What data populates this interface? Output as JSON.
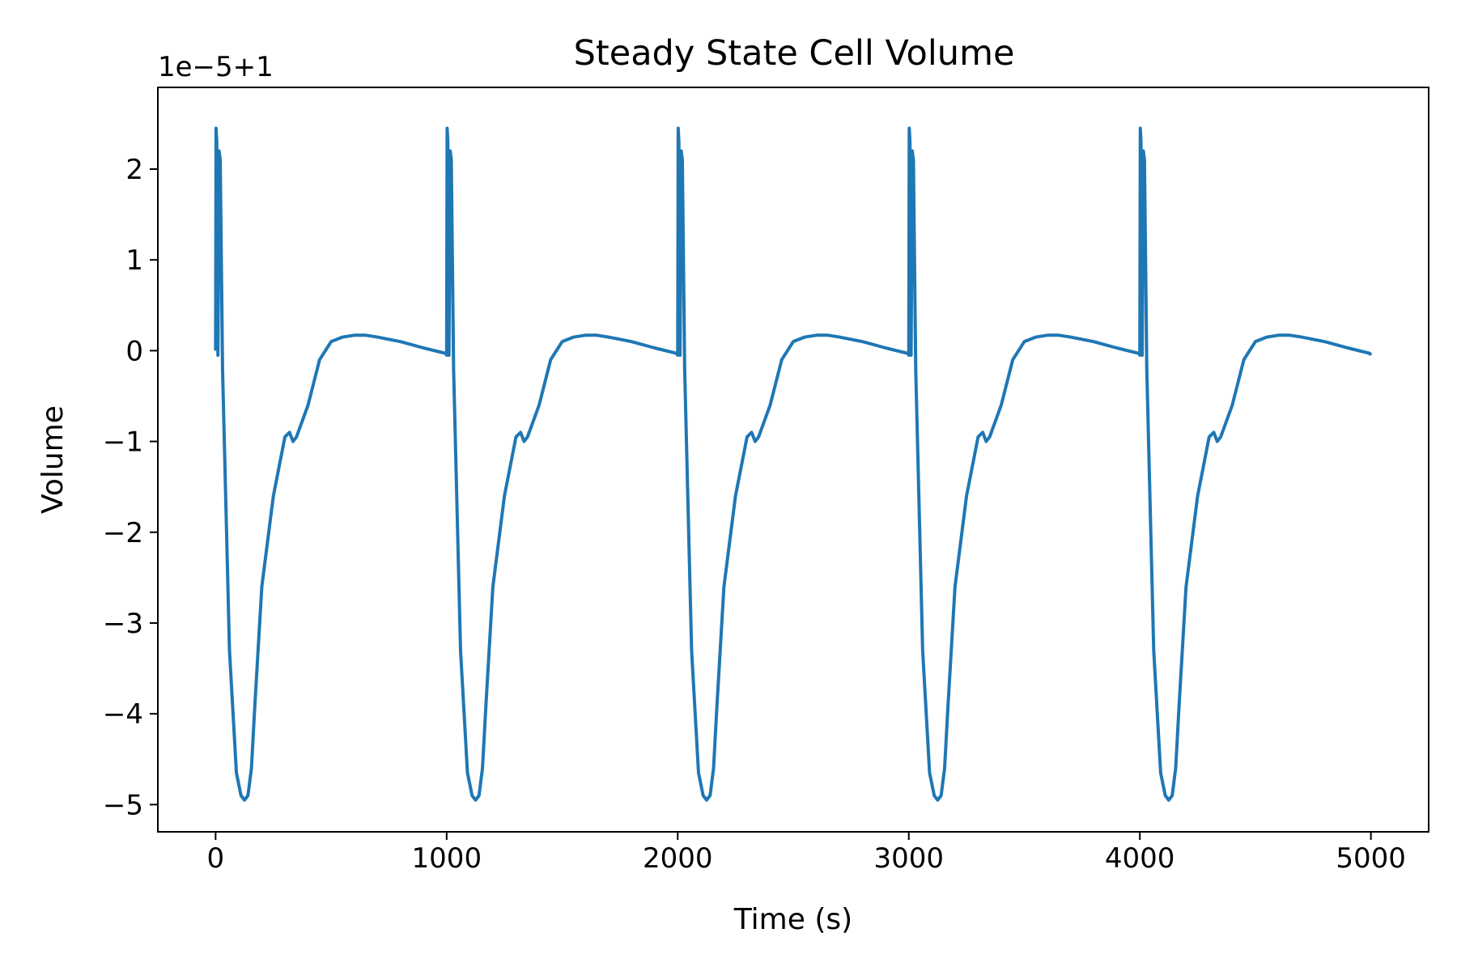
{
  "chart_data": {
    "type": "line",
    "title": "Steady State Cell Volume",
    "xlabel": "Time (s)",
    "ylabel": "Volume",
    "offset_label": "1e−5+1",
    "xlim": [
      -250,
      5250
    ],
    "ylim": [
      -5.3,
      2.9
    ],
    "x_ticks": [
      0,
      1000,
      2000,
      3000,
      4000,
      5000
    ],
    "x_tick_labels": [
      "0",
      "1000",
      "2000",
      "3000",
      "4000",
      "5000"
    ],
    "y_ticks": [
      -5,
      -4,
      -3,
      -2,
      -1,
      0,
      1,
      2
    ],
    "y_tick_labels": [
      "−5",
      "−4",
      "−3",
      "−2",
      "−1",
      "0",
      "1",
      "2"
    ],
    "grid": false,
    "series": [
      {
        "color": "#1f77b4",
        "cycle_period": 1000,
        "cycles": 5,
        "cycle_x": [
          0,
          2,
          5,
          10,
          15,
          20,
          30,
          60,
          90,
          110,
          125,
          140,
          155,
          170,
          200,
          250,
          300,
          320,
          335,
          350,
          400,
          450,
          500,
          550,
          600,
          650,
          700,
          800,
          900,
          995,
          1000
        ],
        "cycle_y": [
          0.0,
          2.45,
          2.3,
          -0.05,
          2.2,
          2.1,
          -0.2,
          -3.3,
          -4.65,
          -4.9,
          -4.95,
          -4.9,
          -4.6,
          -3.9,
          -2.6,
          -1.6,
          -0.95,
          -0.9,
          -1.0,
          -0.95,
          -0.6,
          -0.1,
          0.1,
          0.15,
          0.17,
          0.17,
          0.15,
          0.1,
          0.03,
          -0.03,
          -0.05
        ]
      }
    ]
  }
}
